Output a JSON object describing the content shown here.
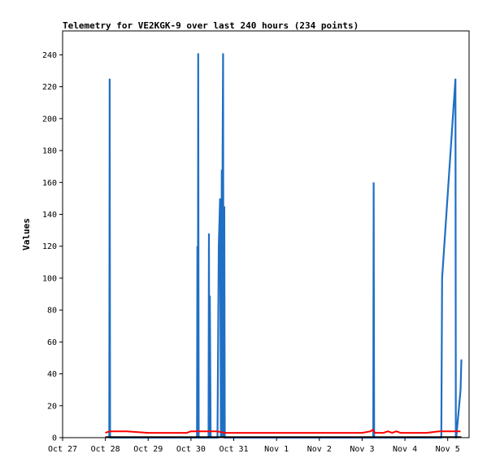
{
  "chart_data": {
    "type": "line",
    "title": "Telemetry for VE2KGK-9 over last 240 hours (234 points)",
    "xlabel": "",
    "ylabel": "Values",
    "x_ticks": [
      "Oct 27",
      "Oct 28",
      "Oct 29",
      "Oct 30",
      "Oct 31",
      "Nov 1",
      "Nov 2",
      "Nov 3",
      "Nov 4",
      "Nov 5"
    ],
    "y_ticks": [
      0,
      20,
      40,
      60,
      80,
      100,
      120,
      140,
      160,
      180,
      200,
      220,
      240
    ],
    "xlim": [
      0,
      9.5
    ],
    "ylim": [
      0,
      255
    ],
    "grid": false,
    "colors": {
      "series_blue": "#1f6fc4",
      "series_red": "#ff0000",
      "series_black": "#000000"
    },
    "series": [
      {
        "color": "#1f6fc4",
        "x": [
          1.09,
          1.1,
          1.11,
          3.14,
          3.15,
          3.16,
          3.17,
          3.18,
          3.19,
          3.41,
          3.42,
          3.43,
          3.44,
          3.46,
          3.47,
          3.62,
          3.65,
          3.68,
          3.7,
          3.72,
          3.73,
          3.74,
          3.75,
          3.76,
          3.78,
          3.79,
          7.26,
          7.27,
          7.28,
          8.85,
          8.87,
          9.18,
          9.19,
          9.2,
          9.3,
          9.32
        ],
        "y": [
          0,
          225,
          0,
          0,
          120,
          0,
          241,
          0,
          0,
          0,
          128,
          0,
          89,
          0,
          0,
          0,
          120,
          150,
          0,
          168,
          0,
          178,
          241,
          0,
          145,
          0,
          0,
          160,
          0,
          0,
          100,
          225,
          0,
          0,
          30,
          49
        ]
      },
      {
        "color": "#ff0000",
        "x": [
          1.0,
          1.1,
          1.5,
          2.0,
          2.5,
          2.9,
          3.0,
          3.3,
          3.6,
          3.8,
          4.0,
          4.5,
          5.0,
          5.5,
          6.0,
          6.5,
          7.0,
          7.2,
          7.25,
          7.3,
          7.5,
          7.6,
          7.7,
          7.8,
          7.9,
          8.0,
          8.5,
          8.8,
          9.0,
          9.2,
          9.3
        ],
        "y": [
          3,
          4,
          4,
          3,
          3,
          3,
          4,
          4,
          4,
          3,
          3,
          3,
          3,
          3,
          3,
          3,
          3,
          4,
          5,
          3,
          3,
          4,
          3,
          4,
          3,
          3,
          3,
          4,
          4,
          4,
          4
        ]
      },
      {
        "color": "#000000",
        "x": [
          1.0,
          9.32
        ],
        "y": [
          0.3,
          0.3
        ]
      }
    ]
  }
}
